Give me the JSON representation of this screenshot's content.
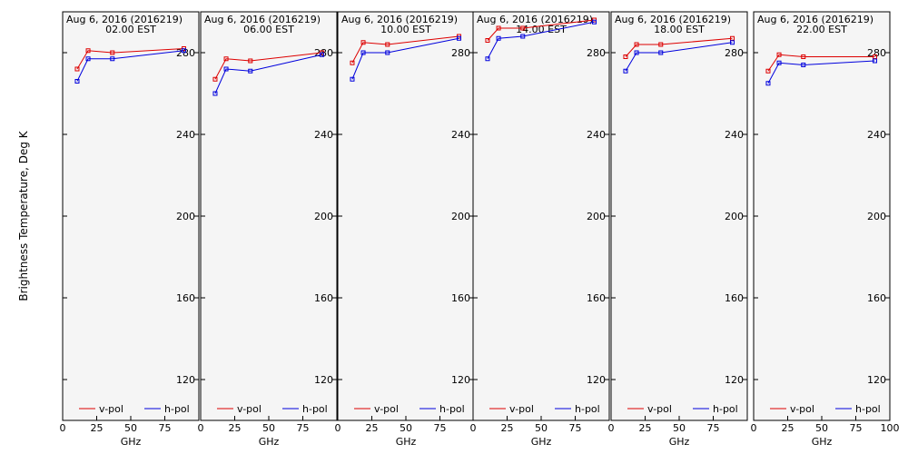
{
  "figure": {
    "ylabel": "Brightness Temperature, Deg K",
    "background": "#f5f5f5",
    "v_color": "#dd0000",
    "h_color": "#0000dd"
  },
  "chart_data": [
    {
      "type": "line",
      "title": "Aug  6, 2016 (2016219)",
      "subtitle": "02.00  EST",
      "xlabel": "GHz",
      "xlim": [
        0,
        100
      ],
      "ylim": [
        100,
        300
      ],
      "xticks": [
        0,
        25,
        50,
        75
      ],
      "yticks": [
        120,
        160,
        200,
        240,
        280
      ],
      "legend": "bottom",
      "series": [
        {
          "name": "v-pol",
          "x": [
            10.65,
            18.7,
            36.5,
            89.0
          ],
          "values": [
            272,
            281,
            280,
            282
          ]
        },
        {
          "name": "h-pol",
          "x": [
            10.65,
            18.7,
            36.5,
            89.0
          ],
          "values": [
            266,
            277,
            277,
            281
          ]
        }
      ]
    },
    {
      "type": "line",
      "title": "Aug  6, 2016 (2016219)",
      "subtitle": "06.00  EST",
      "xlabel": "GHz",
      "xlim": [
        0,
        100
      ],
      "ylim": [
        100,
        300
      ],
      "xticks": [
        0,
        25,
        50,
        75
      ],
      "yticks": [
        120,
        160,
        200,
        240,
        280
      ],
      "legend": "bottom",
      "series": [
        {
          "name": "v-pol",
          "x": [
            10.65,
            18.7,
            36.5,
            89.0
          ],
          "values": [
            267,
            277,
            276,
            280
          ]
        },
        {
          "name": "h-pol",
          "x": [
            10.65,
            18.7,
            36.5,
            89.0
          ],
          "values": [
            260,
            272,
            271,
            279
          ]
        }
      ]
    },
    {
      "type": "line",
      "title": "Aug  6, 2016 (2016219)",
      "subtitle": "10.00  EST",
      "xlabel": "GHz",
      "xlim": [
        0,
        100
      ],
      "ylim": [
        100,
        300
      ],
      "xticks": [
        0,
        25,
        50,
        75
      ],
      "yticks": [
        120,
        160,
        200,
        240,
        280
      ],
      "legend": "bottom",
      "series": [
        {
          "name": "v-pol",
          "x": [
            10.65,
            18.7,
            36.5,
            89.0
          ],
          "values": [
            275,
            285,
            284,
            288
          ]
        },
        {
          "name": "h-pol",
          "x": [
            10.65,
            18.7,
            36.5,
            89.0
          ],
          "values": [
            267,
            280,
            280,
            287
          ]
        }
      ]
    },
    {
      "type": "line",
      "title": "Aug  6, 2016 (2016219)",
      "subtitle": "14.00  EST",
      "xlabel": "GHz",
      "xlim": [
        0,
        100
      ],
      "ylim": [
        100,
        300
      ],
      "xticks": [
        0,
        25,
        50,
        75
      ],
      "yticks": [
        120,
        160,
        200,
        240,
        280
      ],
      "legend": "bottom",
      "series": [
        {
          "name": "v-pol",
          "x": [
            10.65,
            18.7,
            36.5,
            89.0
          ],
          "values": [
            286,
            292,
            292,
            296
          ]
        },
        {
          "name": "h-pol",
          "x": [
            10.65,
            18.7,
            36.5,
            89.0
          ],
          "values": [
            277,
            287,
            288,
            295
          ]
        }
      ]
    },
    {
      "type": "line",
      "title": "Aug  6, 2016 (2016219)",
      "subtitle": "18.00  EST",
      "xlabel": "GHz",
      "xlim": [
        0,
        100
      ],
      "ylim": [
        100,
        300
      ],
      "xticks": [
        0,
        25,
        50,
        75
      ],
      "yticks": [
        120,
        160,
        200,
        240,
        280
      ],
      "legend": "bottom",
      "series": [
        {
          "name": "v-pol",
          "x": [
            10.65,
            18.7,
            36.5,
            89.0
          ],
          "values": [
            278,
            284,
            284,
            287
          ]
        },
        {
          "name": "h-pol",
          "x": [
            10.65,
            18.7,
            36.5,
            89.0
          ],
          "values": [
            271,
            280,
            280,
            285
          ]
        }
      ]
    },
    {
      "type": "line",
      "title": "Aug  6, 2016 (2016219)",
      "subtitle": "22.00  EST",
      "xlabel": "GHz",
      "xlim": [
        0,
        100
      ],
      "ylim": [
        100,
        300
      ],
      "xticks": [
        0,
        25,
        50,
        75,
        100
      ],
      "yticks": [
        120,
        160,
        200,
        240,
        280
      ],
      "legend": "bottom",
      "series": [
        {
          "name": "v-pol",
          "x": [
            10.65,
            18.7,
            36.5,
            89.0
          ],
          "values": [
            271,
            279,
            278,
            278
          ]
        },
        {
          "name": "h-pol",
          "x": [
            10.65,
            18.7,
            36.5,
            89.0
          ],
          "values": [
            265,
            275,
            274,
            276
          ]
        }
      ]
    }
  ]
}
